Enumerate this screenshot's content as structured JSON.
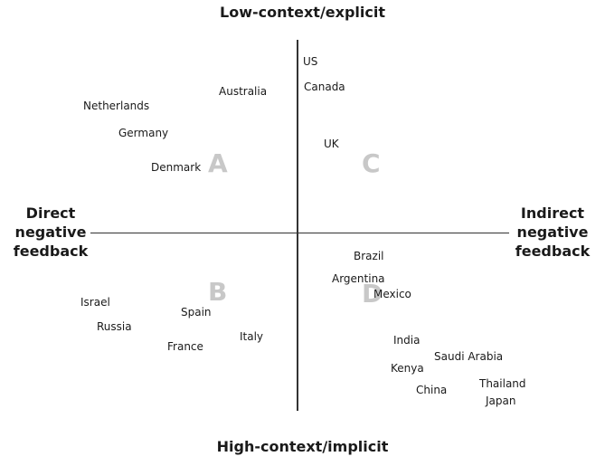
{
  "axes": {
    "top": "Low-context/explicit",
    "bottom": "High-context/implicit",
    "left": [
      "Direct",
      "negative",
      "feedback"
    ],
    "right": [
      "Indirect",
      "negative",
      "feedback"
    ]
  },
  "quadrants": {
    "a": "A",
    "b": "B",
    "c": "C",
    "d": "D"
  },
  "countries": [
    "US",
    "Canada",
    "Australia",
    "Netherlands",
    "Germany",
    "Denmark",
    "UK",
    "Brazil",
    "Argentina",
    "Mexico",
    "Israel",
    "Spain",
    "Russia",
    "Italy",
    "France",
    "India",
    "Saudi Arabia",
    "Kenya",
    "Thailand",
    "China",
    "Japan"
  ]
}
